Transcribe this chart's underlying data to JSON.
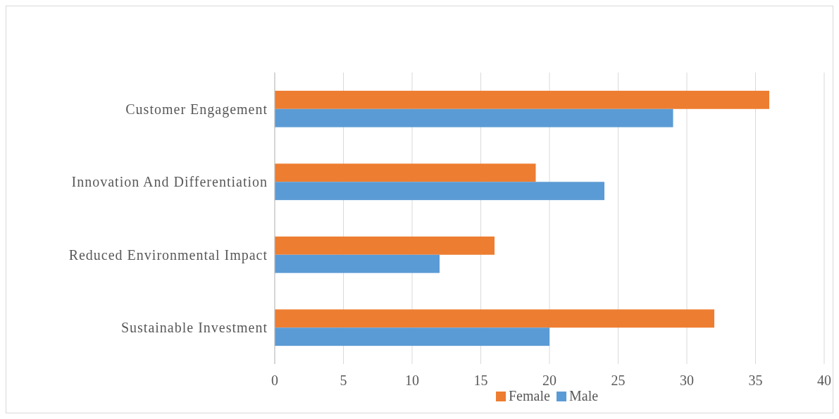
{
  "chart_data": {
    "type": "bar",
    "orientation": "horizontal",
    "categories": [
      "Customer Engagement",
      "Innovation And Differentiation",
      "Reduced Environmental Impact",
      "Sustainable Investment"
    ],
    "series": [
      {
        "name": "Female",
        "color": "#ed7d31",
        "values": [
          36,
          19,
          16,
          32
        ]
      },
      {
        "name": "Male",
        "color": "#5b9bd5",
        "values": [
          29,
          24,
          12,
          20
        ]
      }
    ],
    "xlim": [
      0,
      40
    ],
    "xticks": [
      0,
      5,
      10,
      15,
      20,
      25,
      30,
      35,
      40
    ],
    "grid": "x",
    "legend": "bottom"
  }
}
